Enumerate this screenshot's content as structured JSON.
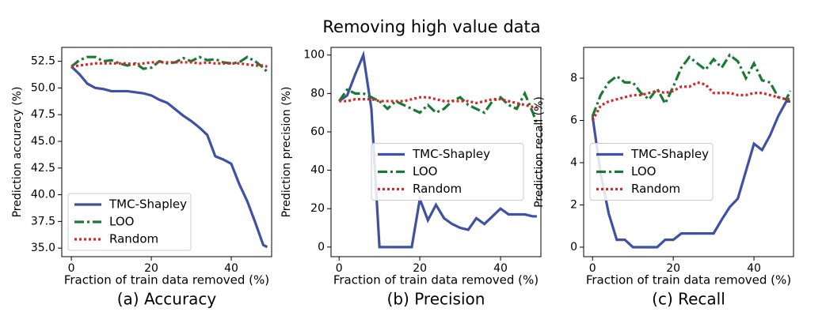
{
  "title": "Removing high value data",
  "chart_data": [
    {
      "type": "line",
      "caption": "(a) Accuracy",
      "xlabel": "Fraction of train data removed (%)",
      "ylabel": "Prediction accuracy (%)",
      "x": [
        0,
        2,
        4,
        6,
        8,
        10,
        12,
        14,
        16,
        18,
        20,
        22,
        24,
        26,
        28,
        30,
        32,
        34,
        36,
        38,
        40,
        42,
        44,
        46,
        48,
        49
      ],
      "xlim": [
        -2.4,
        50.1
      ],
      "xticks": [
        0,
        20,
        40
      ],
      "ylim": [
        34.2,
        53.8
      ],
      "yticks": [
        {
          "value": 35,
          "label": "35.0"
        },
        37.5,
        {
          "value": 40,
          "label": "40.0"
        },
        42.5,
        {
          "value": 45,
          "label": "45.0"
        },
        47.5,
        {
          "value": 50,
          "label": "50.0"
        },
        52.5
      ],
      "legend": "lower left",
      "series": [
        {
          "name": "TMC-Shapley",
          "color": "#3f51a3",
          "linestyle": "solid",
          "values": [
            52.0,
            51.3,
            50.4,
            50.0,
            49.9,
            49.7,
            49.7,
            49.7,
            49.6,
            49.5,
            49.3,
            48.9,
            48.6,
            48.0,
            47.4,
            46.9,
            46.3,
            45.6,
            43.6,
            43.3,
            42.9,
            41.0,
            39.4,
            37.4,
            35.3,
            35.1
          ]
        },
        {
          "name": "LOO",
          "color": "#1a7a35",
          "linestyle": "dashdot",
          "values": [
            52.0,
            52.6,
            52.9,
            52.9,
            52.5,
            52.6,
            52.3,
            52.1,
            52.3,
            51.8,
            51.9,
            52.5,
            52.3,
            52.4,
            52.8,
            52.5,
            52.9,
            52.6,
            52.7,
            52.4,
            52.3,
            52.4,
            52.9,
            52.5,
            51.9,
            51.5
          ]
        },
        {
          "name": "Random",
          "color": "#d62728",
          "linestyle": "dotted",
          "values": [
            52.0,
            52.1,
            52.2,
            52.3,
            52.3,
            52.3,
            52.3,
            52.3,
            52.2,
            52.3,
            52.4,
            52.4,
            52.4,
            52.4,
            52.4,
            52.4,
            52.3,
            52.4,
            52.3,
            52.3,
            52.3,
            52.3,
            52.2,
            52.1,
            52.1,
            52.0
          ]
        }
      ]
    },
    {
      "type": "line",
      "caption": "(b) Precision",
      "xlabel": "Fraction of train data removed (%)",
      "ylabel": "Prediction precision (%)",
      "x": [
        0,
        2,
        4,
        6,
        8,
        10,
        12,
        14,
        16,
        18,
        20,
        22,
        24,
        26,
        28,
        30,
        32,
        34,
        36,
        38,
        40,
        42,
        44,
        46,
        48,
        49
      ],
      "xlim": [
        -2,
        50
      ],
      "xticks": [
        0,
        20,
        40
      ],
      "ylim": [
        -5,
        104
      ],
      "yticks": [
        0,
        20,
        40,
        60,
        80,
        100
      ],
      "legend": "center right",
      "series": [
        {
          "name": "TMC-Shapley",
          "color": "#3f51a3",
          "linestyle": "solid",
          "values": [
            76,
            79,
            90,
            100,
            72,
            0,
            0,
            0,
            0,
            0,
            25,
            14,
            22,
            15,
            12,
            10,
            9,
            15,
            12,
            16,
            20,
            17,
            17,
            17,
            16,
            16
          ]
        },
        {
          "name": "LOO",
          "color": "#1a7a35",
          "linestyle": "dashdot",
          "values": [
            76,
            82,
            80,
            80,
            78,
            76,
            72,
            76,
            74,
            72,
            70,
            74,
            70,
            72,
            76,
            78,
            74,
            72,
            70,
            76,
            78,
            74,
            72,
            80,
            70,
            64
          ]
        },
        {
          "name": "Random",
          "color": "#d62728",
          "linestyle": "dotted",
          "values": [
            76,
            76,
            77,
            77,
            77,
            76,
            76,
            76,
            76,
            77,
            78,
            78,
            77,
            76,
            76,
            76,
            76,
            75,
            76,
            77,
            77,
            76,
            75,
            74,
            73,
            73
          ]
        }
      ]
    },
    {
      "type": "line",
      "caption": "(c) Recall",
      "xlabel": "Fraction of train data removed (%)",
      "ylabel": "Prediction recall (%)",
      "x": [
        0,
        2,
        4,
        6,
        8,
        10,
        12,
        14,
        16,
        18,
        20,
        22,
        24,
        26,
        28,
        30,
        32,
        34,
        36,
        38,
        40,
        42,
        44,
        46,
        48,
        49
      ],
      "xlim": [
        -2.2,
        49.8
      ],
      "xticks": [
        0,
        20,
        40
      ],
      "ylim": [
        -0.45,
        9.46
      ],
      "yticks": [
        0,
        2,
        4,
        6,
        8
      ],
      "legend": "center left",
      "series": [
        {
          "name": "TMC-Shapley",
          "color": "#3f51a3",
          "linestyle": "solid",
          "values": [
            6.2,
            3.5,
            1.6,
            0.35,
            0.35,
            0,
            0,
            0,
            0,
            0.35,
            0.35,
            0.65,
            0.65,
            0.65,
            0.65,
            0.65,
            1.3,
            1.9,
            2.3,
            3.6,
            4.9,
            4.6,
            5.3,
            6.2,
            6.9,
            6.9
          ]
        },
        {
          "name": "LOO",
          "color": "#1a7a35",
          "linestyle": "dashdot",
          "values": [
            6.2,
            7.2,
            7.8,
            8.1,
            7.8,
            7.8,
            7.3,
            7.0,
            7.5,
            6.8,
            7.6,
            8.5,
            9.0,
            8.7,
            8.4,
            8.9,
            8.5,
            9.1,
            8.8,
            8.0,
            8.7,
            7.9,
            7.8,
            7.1,
            7.0,
            7.4
          ]
        },
        {
          "name": "Random",
          "color": "#d62728",
          "linestyle": "dotted",
          "values": [
            6.0,
            6.7,
            6.9,
            7.0,
            7.1,
            7.2,
            7.2,
            7.3,
            7.4,
            7.3,
            7.4,
            7.6,
            7.6,
            7.8,
            7.7,
            7.3,
            7.3,
            7.3,
            7.2,
            7.2,
            7.3,
            7.3,
            7.2,
            7.1,
            7.0,
            7.0
          ]
        }
      ]
    }
  ]
}
